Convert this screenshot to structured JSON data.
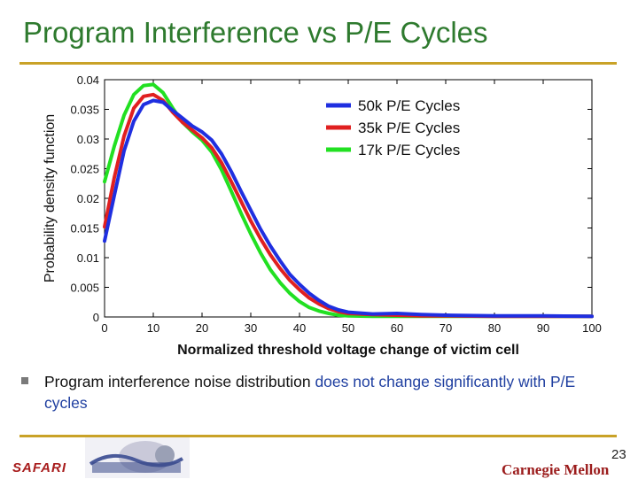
{
  "slide": {
    "title": "Program Interference vs P/E Cycles",
    "bullet_parts": [
      "Program interference noise distribution ",
      "does not change significantly with P/E cycles"
    ],
    "footer_left": "SAFARI",
    "footer_right": "Carnegie Mellon",
    "page_number": "23"
  },
  "colors": {
    "title": "#2e7a2e",
    "rule": "#c9a227",
    "highlight": "#1f3fa0"
  },
  "chart_data": {
    "type": "line",
    "xlabel": "Normalized threshold voltage change of victim cell",
    "ylabel": "Probability density function",
    "xlim": [
      0,
      100
    ],
    "ylim": [
      0,
      0.04
    ],
    "xticks": [
      0,
      10,
      20,
      30,
      40,
      50,
      60,
      70,
      80,
      90,
      100
    ],
    "yticks": [
      0,
      0.005,
      0.01,
      0.015,
      0.02,
      0.025,
      0.03,
      0.035,
      0.04
    ],
    "ytick_labels": [
      "0",
      "0.005",
      "0.01",
      "0.015",
      "0.02",
      "0.025",
      "0.03",
      "0.035",
      "0.04"
    ],
    "grid": false,
    "legend_position": "top-right",
    "series": [
      {
        "name": "50k P/E Cycles",
        "color": "#1f2fe0",
        "x": [
          0,
          2,
          4,
          6,
          8,
          10,
          12,
          14,
          16,
          18,
          20,
          22,
          24,
          26,
          28,
          30,
          32,
          34,
          36,
          38,
          40,
          42,
          44,
          46,
          48,
          50,
          55,
          60,
          65,
          70,
          80,
          90,
          100
        ],
        "y": [
          0.0128,
          0.0205,
          0.028,
          0.033,
          0.0358,
          0.0365,
          0.0362,
          0.0348,
          0.0335,
          0.0322,
          0.0312,
          0.0298,
          0.0275,
          0.0245,
          0.0212,
          0.018,
          0.0148,
          0.012,
          0.0095,
          0.0072,
          0.0055,
          0.004,
          0.0028,
          0.0018,
          0.0012,
          0.0008,
          0.0005,
          0.0006,
          0.0004,
          0.0003,
          0.0002,
          0.0002,
          0.0001
        ]
      },
      {
        "name": "35k P/E Cycles",
        "color": "#e02020",
        "x": [
          0,
          2,
          4,
          6,
          8,
          10,
          12,
          14,
          16,
          18,
          20,
          22,
          24,
          26,
          28,
          30,
          32,
          34,
          36,
          38,
          40,
          42,
          44,
          46,
          48,
          50,
          55,
          60,
          65,
          70,
          80,
          90,
          100
        ],
        "y": [
          0.0152,
          0.0235,
          0.0305,
          0.0352,
          0.0372,
          0.0375,
          0.0365,
          0.0345,
          0.0328,
          0.0315,
          0.0302,
          0.0285,
          0.026,
          0.0228,
          0.0195,
          0.0162,
          0.0132,
          0.0105,
          0.0082,
          0.0062,
          0.0046,
          0.0032,
          0.0022,
          0.0014,
          0.0009,
          0.0006,
          0.0004,
          0.0003,
          0.0002,
          0.0002,
          0.0001,
          0.0001,
          0.0001
        ]
      },
      {
        "name": "17k P/E Cycles",
        "color": "#22e022",
        "x": [
          0,
          2,
          4,
          6,
          8,
          10,
          12,
          14,
          16,
          18,
          20,
          22,
          24,
          26,
          28,
          30,
          32,
          34,
          36,
          38,
          40,
          42,
          44,
          46,
          48,
          50,
          55,
          60,
          65,
          70,
          80,
          90,
          100
        ],
        "y": [
          0.0228,
          0.0288,
          0.034,
          0.0375,
          0.039,
          0.0392,
          0.0378,
          0.0352,
          0.0328,
          0.0312,
          0.0298,
          0.0278,
          0.0248,
          0.0212,
          0.0175,
          0.014,
          0.0108,
          0.008,
          0.0058,
          0.004,
          0.0026,
          0.0016,
          0.001,
          0.0006,
          0.0003,
          0.0002,
          0.0001,
          0.0001,
          0.0001,
          0.0001,
          0.0001,
          0.0001,
          0.0001
        ]
      }
    ]
  }
}
